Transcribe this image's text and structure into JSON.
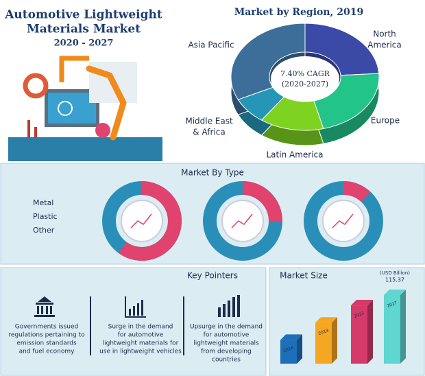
{
  "header": {
    "title_line1": "Automotive Lightweight",
    "title_line2": "Materials Market",
    "years": "2020 - 2027"
  },
  "region": {
    "title": "Market by Region, 2019",
    "cagr_line1": "7.40% CAGR",
    "cagr_line2": "(2020-2027)",
    "segments": [
      {
        "label": [
          "North",
          "America"
        ],
        "share": 24,
        "color": "#3b4aa6"
      },
      {
        "label": [
          "Europe"
        ],
        "share": 22,
        "color": "#22c48a"
      },
      {
        "label": [
          "Latin America"
        ],
        "share": 14,
        "color": "#7ed321"
      },
      {
        "label": [
          "Middle East",
          "& Africa"
        ],
        "share": 8,
        "color": "#2596b5"
      },
      {
        "label": [
          "Asia Pacific"
        ],
        "share": 32,
        "color": "#3d6e99"
      }
    ]
  },
  "market_by_type": {
    "title": "Market By Type",
    "legend": [
      "Metal",
      "Plastic",
      "Other"
    ],
    "donuts": [
      {
        "share": 60
      },
      {
        "share": 25
      },
      {
        "share": 12
      }
    ],
    "colors": {
      "share": "#e0436e",
      "rest": "#2a8fb8"
    }
  },
  "key_pointers": {
    "title": "Key Pointers",
    "items": [
      [
        "Governments issued",
        "regulations pertaining to",
        "emission standards",
        "and fuel economy"
      ],
      [
        "Surge in the demand",
        "for automotive",
        "lightweight materials for",
        "use in lightweight vehicles"
      ],
      [
        "Upsurge in the demand",
        "for automotive",
        "lightweight materials",
        "from developing",
        "countries"
      ]
    ]
  },
  "market_size": {
    "title": "Market Size",
    "unit": "(USD Billion)",
    "bars": [
      {
        "year": "2016",
        "value": 40,
        "color": "#1e6fb8"
      },
      {
        "year": "2019",
        "value": 69,
        "color": "#f5a623"
      },
      {
        "year": "2023",
        "value": 98,
        "color": "#d63a6a"
      },
      {
        "year": "2027",
        "value": 115.37,
        "color": "#5fd6cf"
      }
    ]
  }
}
